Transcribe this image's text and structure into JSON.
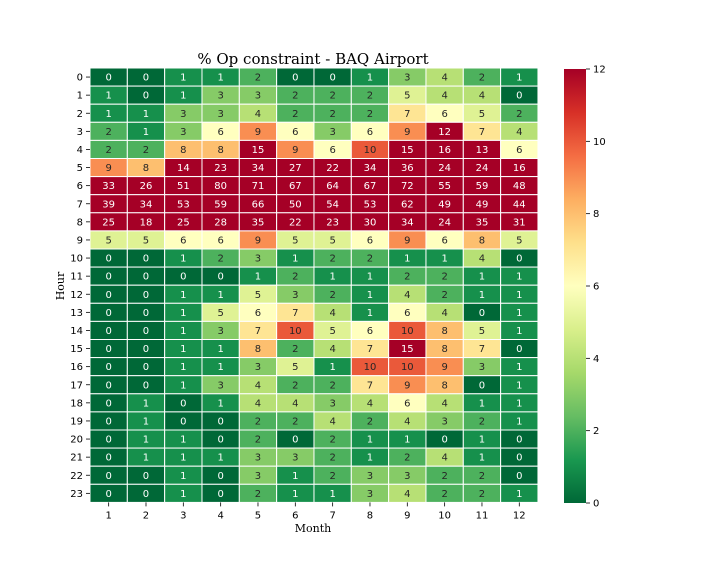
{
  "chart_data": {
    "type": "heatmap",
    "title": "% Op constraint - BAQ Airport",
    "xlabel": "Month",
    "ylabel": "Hour",
    "x_categories": [
      "1",
      "2",
      "3",
      "4",
      "5",
      "6",
      "7",
      "8",
      "9",
      "10",
      "11",
      "12"
    ],
    "y_categories": [
      "0",
      "1",
      "2",
      "3",
      "4",
      "5",
      "6",
      "7",
      "8",
      "9",
      "10",
      "11",
      "12",
      "13",
      "14",
      "15",
      "16",
      "17",
      "18",
      "19",
      "20",
      "21",
      "22",
      "23"
    ],
    "values": [
      [
        0,
        0,
        1,
        1,
        2,
        0,
        0,
        1,
        3,
        4,
        2,
        1
      ],
      [
        1,
        0,
        1,
        3,
        3,
        2,
        2,
        2,
        5,
        4,
        4,
        0
      ],
      [
        1,
        1,
        3,
        3,
        4,
        2,
        2,
        2,
        7,
        6,
        5,
        2
      ],
      [
        2,
        1,
        3,
        6,
        9,
        6,
        3,
        6,
        9,
        12,
        7,
        4
      ],
      [
        2,
        2,
        8,
        8,
        15,
        9,
        6,
        10,
        15,
        16,
        13,
        6
      ],
      [
        9,
        8,
        14,
        23,
        34,
        27,
        22,
        34,
        36,
        24,
        24,
        16
      ],
      [
        33,
        26,
        51,
        80,
        71,
        67,
        64,
        67,
        72,
        55,
        59,
        48
      ],
      [
        39,
        34,
        53,
        59,
        66,
        50,
        54,
        53,
        62,
        49,
        49,
        44
      ],
      [
        25,
        18,
        25,
        28,
        35,
        22,
        23,
        30,
        34,
        24,
        35,
        31
      ],
      [
        5,
        5,
        6,
        6,
        9,
        5,
        5,
        6,
        9,
        6,
        8,
        5
      ],
      [
        0,
        0,
        1,
        2,
        3,
        1,
        2,
        2,
        1,
        1,
        4,
        0
      ],
      [
        0,
        0,
        0,
        0,
        1,
        2,
        1,
        1,
        2,
        2,
        1,
        1
      ],
      [
        0,
        0,
        1,
        1,
        5,
        3,
        2,
        1,
        4,
        2,
        1,
        1
      ],
      [
        0,
        0,
        1,
        5,
        6,
        7,
        4,
        1,
        6,
        4,
        0,
        1
      ],
      [
        0,
        0,
        1,
        3,
        7,
        10,
        5,
        6,
        10,
        8,
        5,
        1
      ],
      [
        0,
        0,
        1,
        1,
        8,
        2,
        4,
        7,
        15,
        8,
        7,
        0
      ],
      [
        0,
        0,
        1,
        1,
        3,
        5,
        1,
        10,
        10,
        9,
        3,
        1
      ],
      [
        0,
        0,
        1,
        3,
        4,
        2,
        2,
        7,
        9,
        8,
        0,
        1
      ],
      [
        0,
        1,
        0,
        1,
        4,
        4,
        3,
        4,
        6,
        4,
        1,
        1
      ],
      [
        0,
        1,
        0,
        0,
        2,
        2,
        4,
        2,
        4,
        3,
        2,
        1
      ],
      [
        0,
        1,
        1,
        0,
        2,
        0,
        2,
        1,
        1,
        0,
        1,
        0
      ],
      [
        0,
        1,
        1,
        1,
        3,
        3,
        2,
        1,
        2,
        4,
        1,
        0
      ],
      [
        0,
        0,
        1,
        0,
        3,
        1,
        2,
        3,
        3,
        2,
        2,
        0
      ],
      [
        0,
        0,
        1,
        0,
        2,
        1,
        1,
        3,
        4,
        2,
        2,
        1
      ]
    ],
    "vmin": 0,
    "vmax": 12,
    "colormap": "RdYlGn_r",
    "colorbar_ticks": [
      "0",
      "2",
      "4",
      "6",
      "8",
      "10",
      "12"
    ],
    "annotations": true,
    "cell_border_color": "#ffffff"
  }
}
